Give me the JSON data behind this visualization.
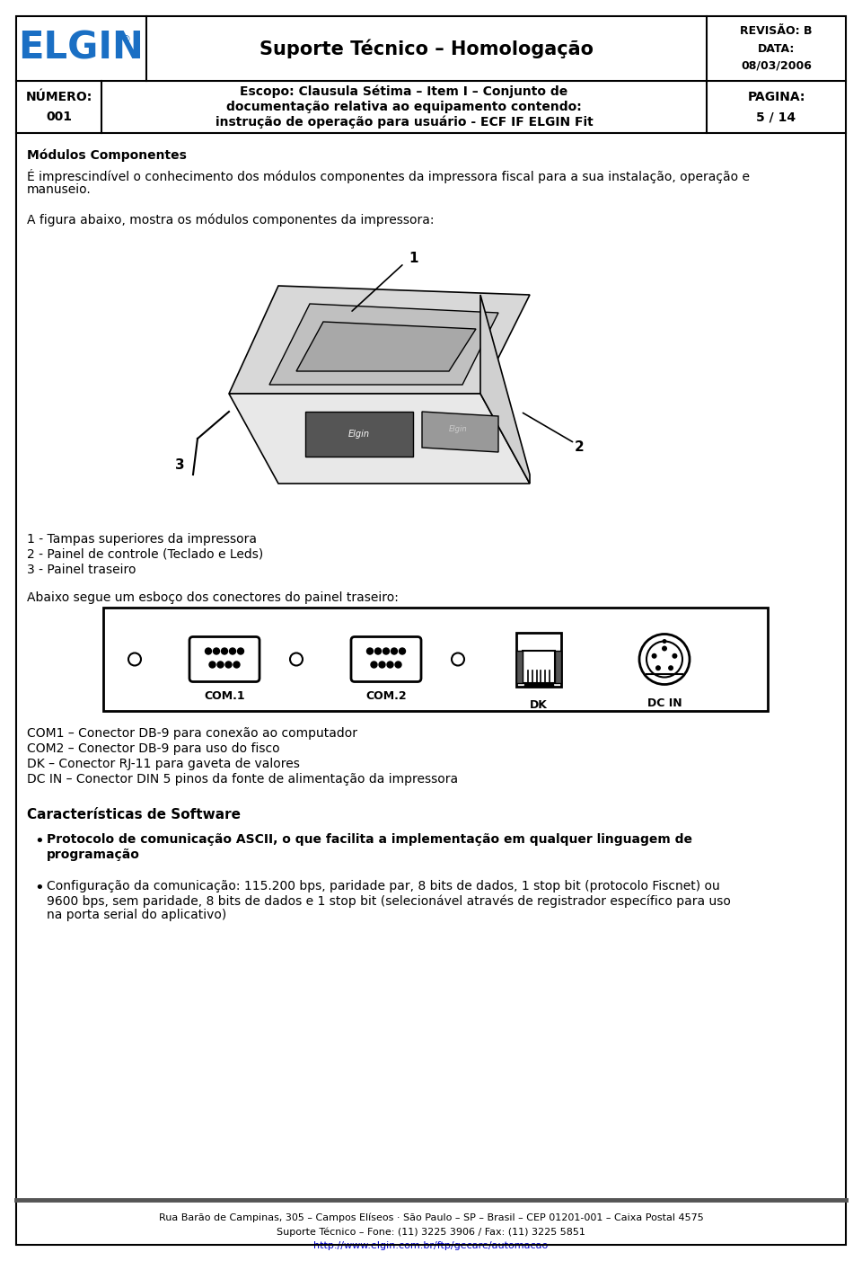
{
  "bg_color": "#ffffff",
  "header": {
    "logo_text": "ELGIN",
    "logo_color": "#1a6fc4",
    "logo_tm": "®",
    "title": "Suporte Técnico – Homologação",
    "right_top": "REVISÃO: B\nDATA:\n08/03/2006",
    "numero_label": "NÚMERO:\n001",
    "escopo_line1": "Escopo: Clausula Sétima – Item I – Conjunto de",
    "escopo_line2": "documentação relativa ao equipamento contendo:",
    "escopo_line3": "instrução de operação para usuário - ECF IF ELGIN Fit",
    "pagina": "PAGINA:\n5 / 14"
  },
  "body": {
    "section_title": "Módulos Componentes",
    "para1_line1": "É imprescindível o conhecimento dos módulos componentes da impressora fiscal para a sua instalação, operação e",
    "para1_line2": "manuseio.",
    "para2": "A figura abaixo, mostra os módulos componentes da impressora:",
    "label1": "1 - Tampas superiores da impressora",
    "label2": "2 - Painel de controle (Teclado e Leds)",
    "label3": "3 - Painel traseiro",
    "connector_title": "Abaixo segue um esboço dos conectores do painel traseiro:",
    "com1_desc": "COM1 – Conector DB-9 para conexão ao computador",
    "com2_desc": "COM2 – Conector DB-9 para uso do fisco",
    "dk_desc": "DK – Conector RJ-11 para gaveta de valores",
    "dcin_desc": "DC IN – Conector DIN 5 pinos da fonte de alimentação da impressora",
    "sw_title": "Características de Software",
    "bullet1": "Protocolo de comunicação ASCII, o que facilita a implementação em qualquer linguagem de",
    "bullet1b": "programação",
    "bullet2_line1": "Configuração da comunicação: 115.200 bps, paridade par, 8 bits de dados, 1 stop bit (protocolo Fiscnet) ou",
    "bullet2_line2": "9600 bps, sem paridade, 8 bits de dados e 1 stop bit (selecionável através de registrador específico para uso",
    "bullet2_line3": "na porta serial do aplicativo)"
  },
  "footer": {
    "line1": "Rua Barão de Campinas, 305 – Campos Elíseos · São Paulo – SP – Brasil – CEP 01201-001 – Caixa Postal 4575",
    "line2": "Suporte Técnico – Fone: (11) 3225 3906 / Fax: (11) 3225 5851",
    "line3": "http://www.elgin.com.br/ftp/gecare/automacao"
  }
}
